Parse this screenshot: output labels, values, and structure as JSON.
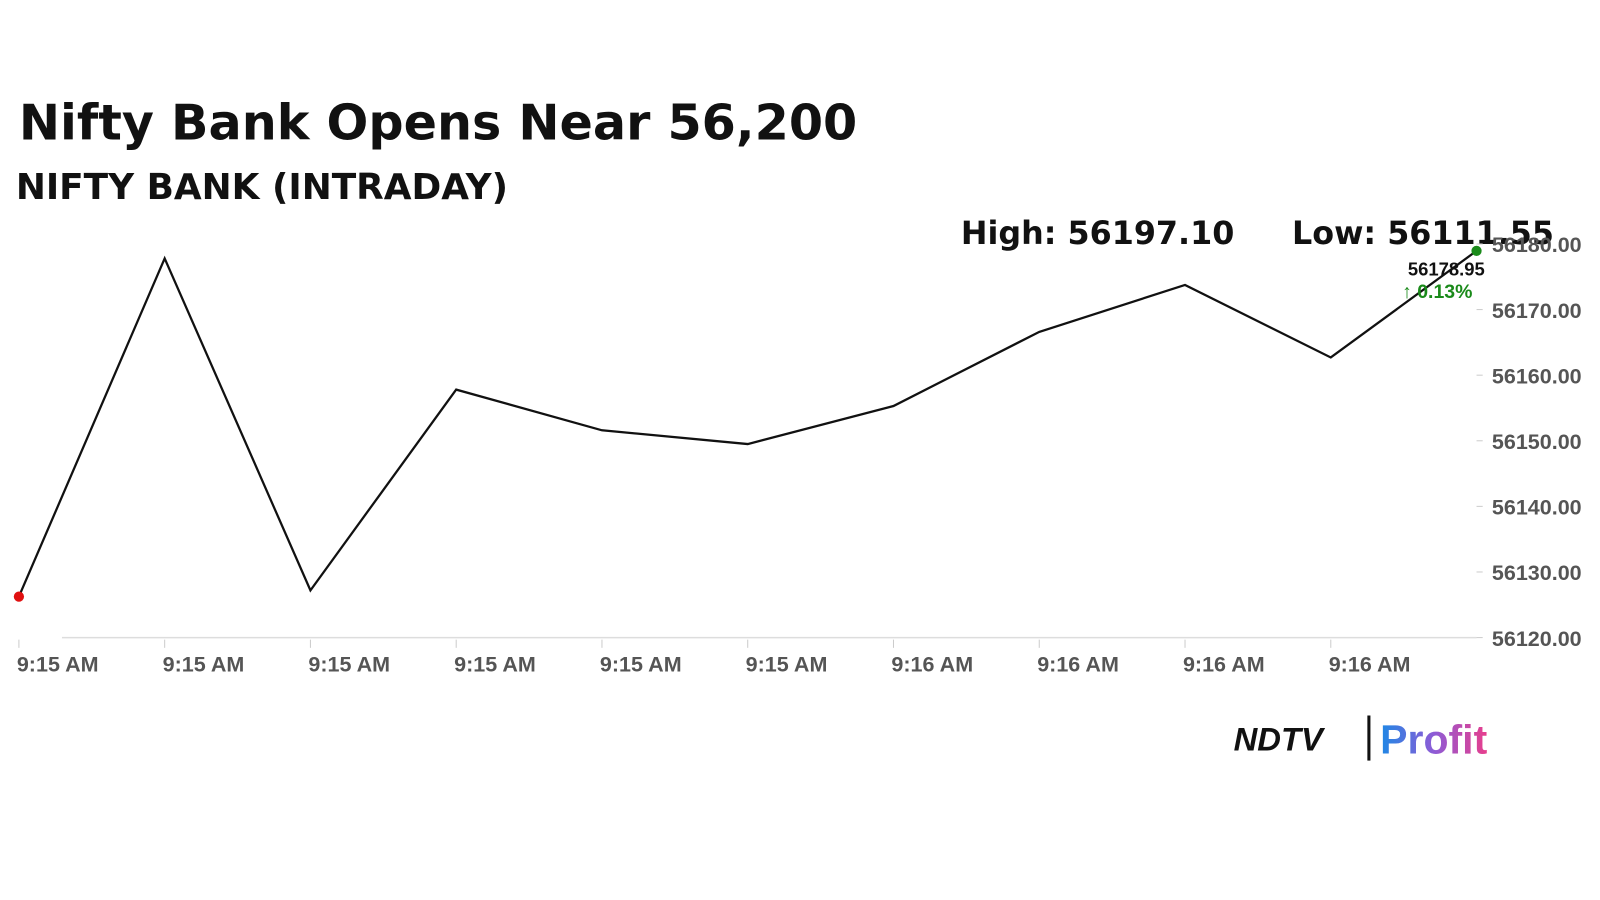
{
  "chart_data": {
    "type": "line",
    "title": "Nifty Bank Opens Near 56,200",
    "subtitle": "NIFTY BANK (INTRADAY)",
    "high_label": "High: 56197.10",
    "low_label": "Low: 56111.55",
    "change_label": "↑ 0.13%",
    "xtick_labels": [
      "9:15 AM",
      "9:15 AM",
      "9:15 AM",
      "9:15 AM",
      "9:15 AM",
      "9:15 AM",
      "9:16 AM",
      "9:16 AM",
      "9:16 AM",
      "9:16 AM"
    ],
    "values": [
      56126.25,
      56177.8,
      56127.2,
      56157.8,
      56151.6,
      56149.5,
      56155.3,
      56166.6,
      56173.75,
      56162.7,
      56178.95
    ],
    "value_labels": [
      null,
      null,
      null,
      null,
      null,
      null,
      null,
      null,
      null,
      null,
      "56178.95"
    ],
    "color": "#111111",
    "start_color": "#e01010",
    "end_color": "#1a8a1a",
    "ylim": [
      56120,
      56180
    ],
    "yticks": [
      {
        "value": 56120,
        "label": "56120.00"
      },
      {
        "value": 56130,
        "label": "56130.00"
      },
      {
        "value": 56140,
        "label": "56140.00"
      },
      {
        "value": 56150,
        "label": "56150.00"
      },
      {
        "value": 56160,
        "label": "56160.00"
      },
      {
        "value": 56170,
        "label": "56170.00"
      },
      {
        "value": 56180,
        "label": "56180.00"
      }
    ]
  },
  "logo": {
    "left": "NDTV",
    "right": "Profit"
  }
}
